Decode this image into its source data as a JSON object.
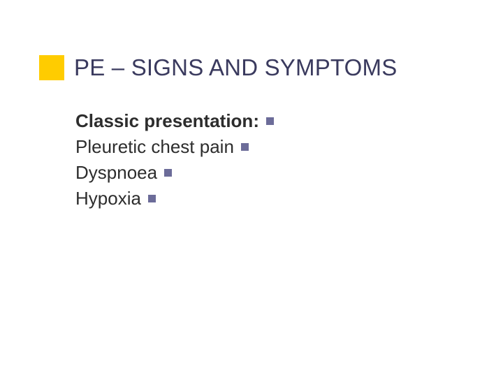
{
  "title": {
    "text": "PE – SIGNS AND SYMPTOMS",
    "block_color": "#ffcc00",
    "title_color": "#3a3a5e",
    "title_fontsize": 33
  },
  "body": {
    "text_color": "#2d2d2d",
    "bullet_color": "#6c6c99",
    "fontsize": 26,
    "lines": [
      {
        "text": "Classic presentation:",
        "bold": true
      },
      {
        "text": "Pleuretic chest pain",
        "bold": false
      },
      {
        "text": "Dyspnoea",
        "bold": false
      },
      {
        "text": "Hypoxia",
        "bold": false
      }
    ]
  }
}
